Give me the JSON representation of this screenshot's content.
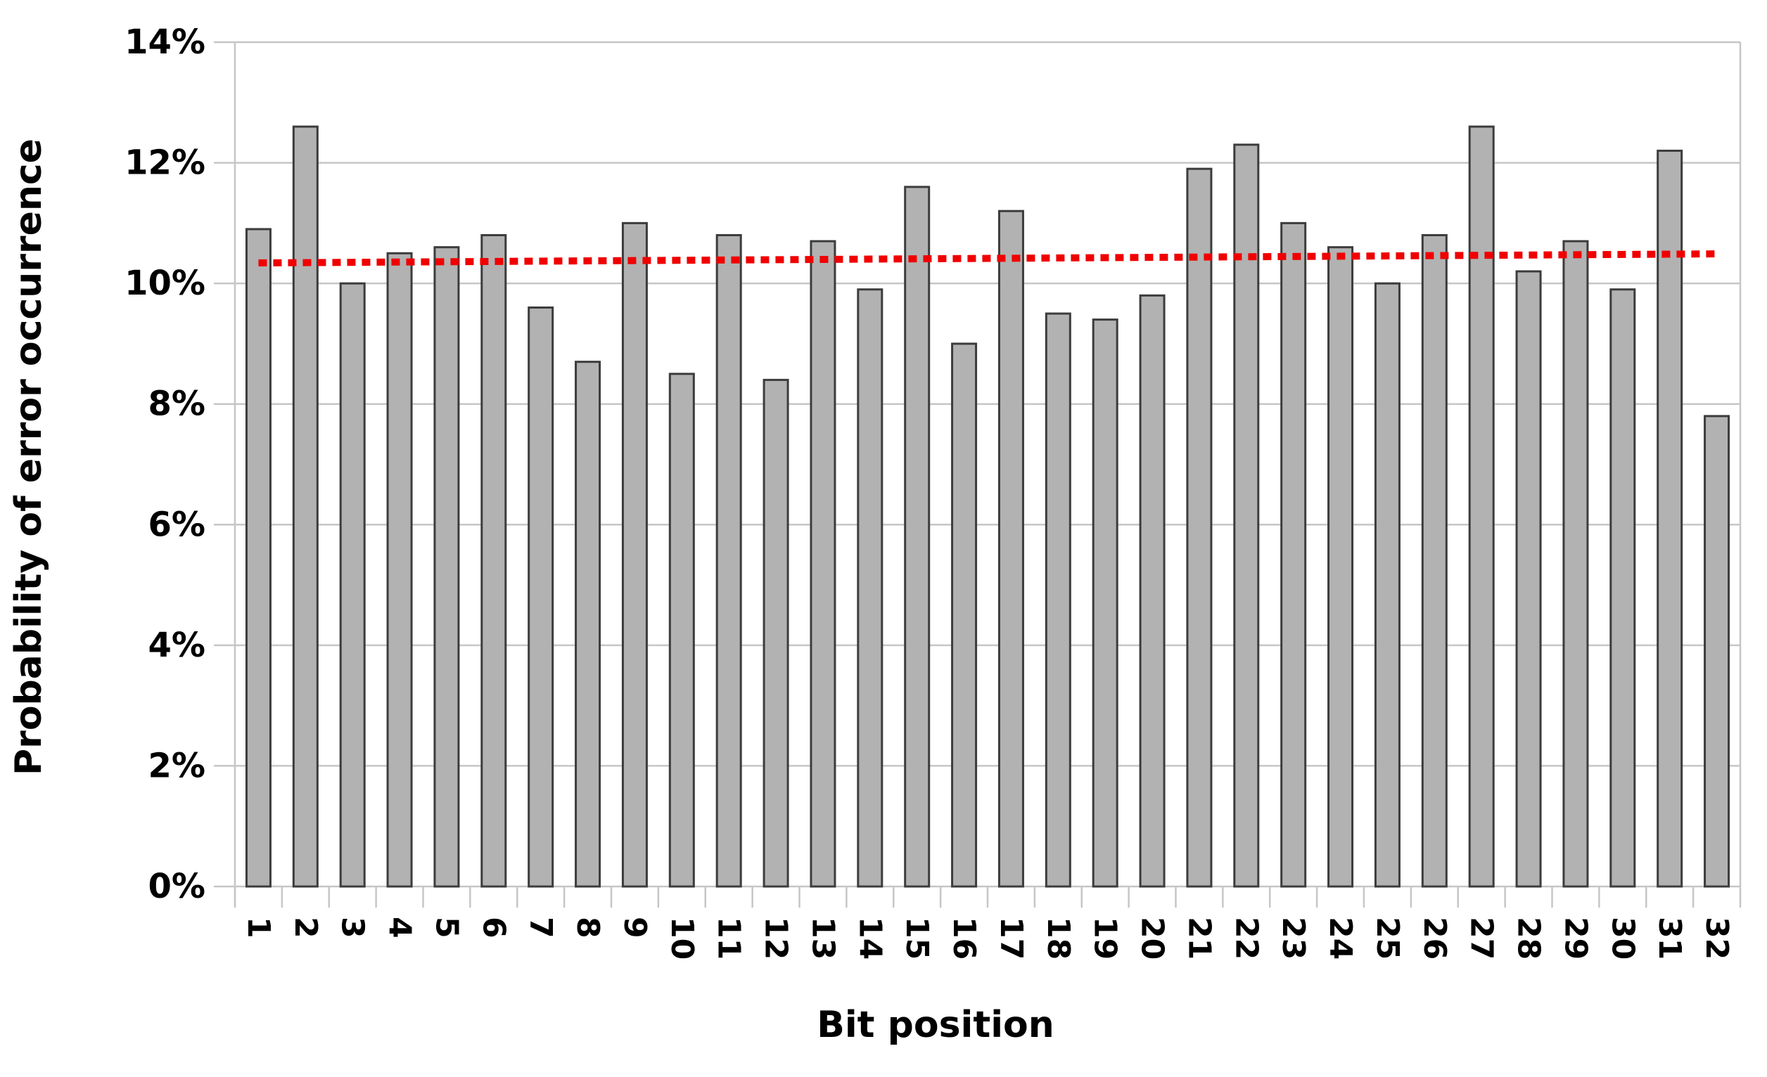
{
  "chart_data": {
    "type": "bar",
    "title": "",
    "xlabel": "Bit position",
    "ylabel": "Probability of error occurrence",
    "categories": [
      "1",
      "2",
      "3",
      "4",
      "5",
      "6",
      "7",
      "8",
      "9",
      "10",
      "11",
      "12",
      "13",
      "14",
      "15",
      "16",
      "17",
      "18",
      "19",
      "20",
      "21",
      "22",
      "23",
      "24",
      "25",
      "26",
      "27",
      "28",
      "29",
      "30",
      "31",
      "32"
    ],
    "values": [
      10.9,
      12.6,
      10.0,
      10.5,
      10.6,
      10.8,
      9.6,
      8.7,
      11.0,
      8.5,
      10.8,
      8.4,
      10.7,
      9.9,
      11.6,
      9.0,
      11.2,
      9.5,
      9.4,
      9.8,
      11.9,
      12.3,
      11.0,
      10.6,
      10.0,
      10.8,
      12.6,
      10.2,
      10.7,
      9.9,
      12.2,
      7.8
    ],
    "ylim": [
      0,
      14
    ],
    "ytick_step": 2,
    "ytick_suffix": "%",
    "grid": true,
    "legend_position": "none",
    "trendline": {
      "type": "linear",
      "start_value": 10.34,
      "end_value": 10.49,
      "style": "dotted",
      "color": "#f00000"
    },
    "colors": {
      "bar_fill": "#b2b2b2",
      "bar_border": "#3c3c3c",
      "gridline": "#c6c6c6",
      "axis_line": "#c6c6c6",
      "background": "#ffffff",
      "text": "#000000"
    }
  }
}
